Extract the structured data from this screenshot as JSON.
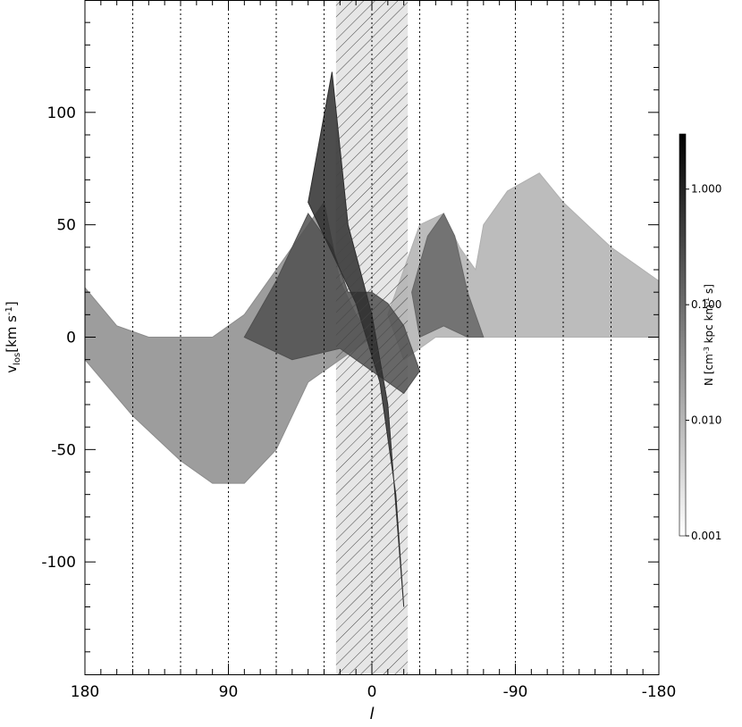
{
  "chart_data": {
    "type": "area",
    "xlabel": "l",
    "ylabel": {
      "main": "v",
      "sub": "los",
      "unit": "[km s",
      "exp": "-1",
      "close": "]"
    },
    "xlim": [
      180,
      -180
    ],
    "ylim": [
      -150,
      150
    ],
    "xticks": [
      180,
      90,
      0,
      -90,
      -180
    ],
    "yticks": [
      -100,
      -50,
      0,
      50,
      100
    ],
    "vlines": [
      150,
      120,
      90,
      60,
      30,
      0,
      -30,
      -60,
      -90,
      -120,
      -150
    ],
    "hatch_band": [
      22.5,
      -22.5
    ],
    "series": [
      {
        "color": "#8c8c8c",
        "x": [
          180,
          160,
          140,
          100,
          80,
          60,
          40,
          30,
          20,
          10,
          0,
          20,
          40,
          60,
          80,
          100,
          120,
          150,
          180
        ],
        "y": [
          22,
          5,
          0,
          0,
          10,
          30,
          50,
          60,
          25,
          10,
          0,
          -10,
          -20,
          -50,
          -65,
          -65,
          -55,
          -35,
          -10
        ]
      },
      {
        "color": "#b0b0b0",
        "x": [
          -10,
          -20,
          -30,
          -45,
          -55,
          -65,
          -70,
          -85,
          -105,
          -120,
          -150,
          -180,
          -180,
          -110,
          -70,
          -40,
          -20
        ],
        "y": [
          10,
          30,
          50,
          55,
          40,
          30,
          50,
          65,
          73,
          60,
          40,
          25,
          0,
          0,
          0,
          0,
          -10
        ]
      },
      {
        "color": "#666666",
        "x": [
          -25,
          -35,
          -45,
          -52,
          -60,
          -70,
          -60,
          -45,
          -30
        ],
        "y": [
          20,
          45,
          55,
          45,
          20,
          0,
          0,
          5,
          0
        ]
      },
      {
        "color": "#505050",
        "x": [
          80,
          60,
          40,
          25,
          15,
          0,
          -10,
          -20,
          -30,
          -20,
          0,
          20,
          50
        ],
        "y": [
          0,
          25,
          55,
          40,
          20,
          20,
          15,
          5,
          -15,
          -25,
          -15,
          -5,
          -10
        ]
      },
      {
        "color": "#2e2e2e",
        "x": [
          40,
          25,
          15,
          0,
          -10,
          -20,
          -15,
          -5,
          10
        ],
        "y": [
          60,
          118,
          50,
          10,
          -30,
          -120,
          -70,
          -20,
          15
        ]
      }
    ],
    "colorbar": {
      "label": {
        "main": "N [cm",
        "exp1": "-3",
        "mid": " kpc km",
        "exp2": "-1",
        "close": " s]"
      },
      "colors": [
        "#ffffff",
        "#000000"
      ],
      "lim": [
        0.001,
        3
      ],
      "log": true,
      "ticks": [
        {
          "value": 0.001,
          "label": "0.001"
        },
        {
          "value": 0.01,
          "label": "0.010"
        },
        {
          "value": 0.1,
          "label": "0.100"
        },
        {
          "value": 1,
          "label": "1.000"
        }
      ]
    }
  }
}
